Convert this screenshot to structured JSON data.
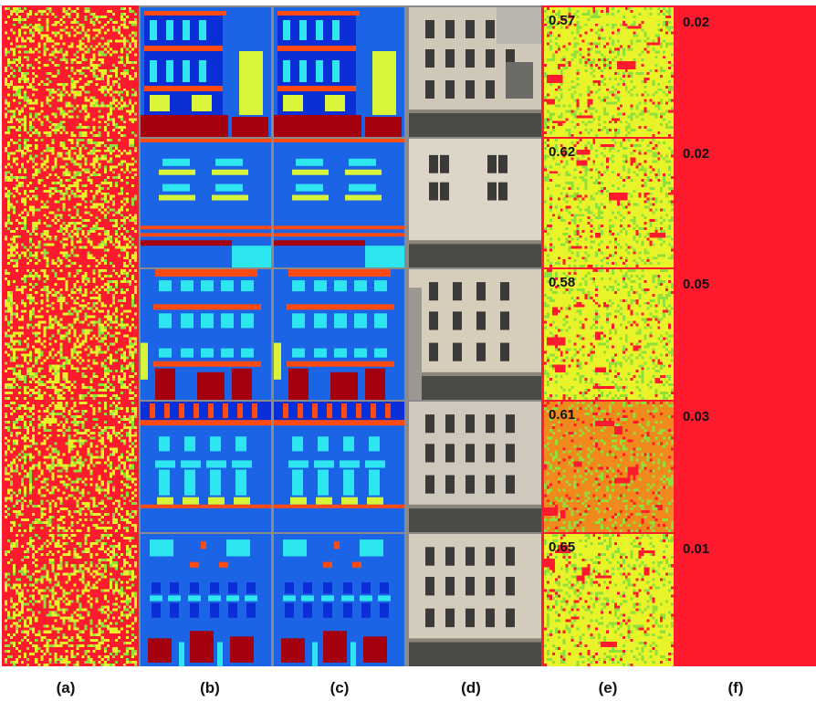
{
  "columns": [
    {
      "id": "a",
      "label": "(a)"
    },
    {
      "id": "b",
      "label": "(b)"
    },
    {
      "id": "c",
      "label": "(c)"
    },
    {
      "id": "d",
      "label": "(d)"
    },
    {
      "id": "e",
      "label": "(e)"
    },
    {
      "id": "f",
      "label": "(f)"
    }
  ],
  "rows": [
    {
      "e_score": "0.57",
      "f_score": "0.02"
    },
    {
      "e_score": "0.62",
      "f_score": "0.02"
    },
    {
      "e_score": "0.58",
      "f_score": "0.05"
    },
    {
      "e_score": "0.61",
      "f_score": "0.03"
    },
    {
      "e_score": "0.65",
      "f_score": "0.01"
    }
  ],
  "colors": {
    "heat_red": "#ff1a2e",
    "heat_yellow": "#e8f32a",
    "heat_green": "#8fe03a",
    "heat_orange": "#f08a1c",
    "label_background": "#1c64e6",
    "label_wall": "#0b2fd6",
    "label_window": "#2ee6f0",
    "label_sill": "#ff4a12",
    "label_balcony": "#d8f53a",
    "label_door": "#a5000d",
    "photo_wall": "#d9d2c4",
    "photo_window": "#3b3a38"
  }
}
